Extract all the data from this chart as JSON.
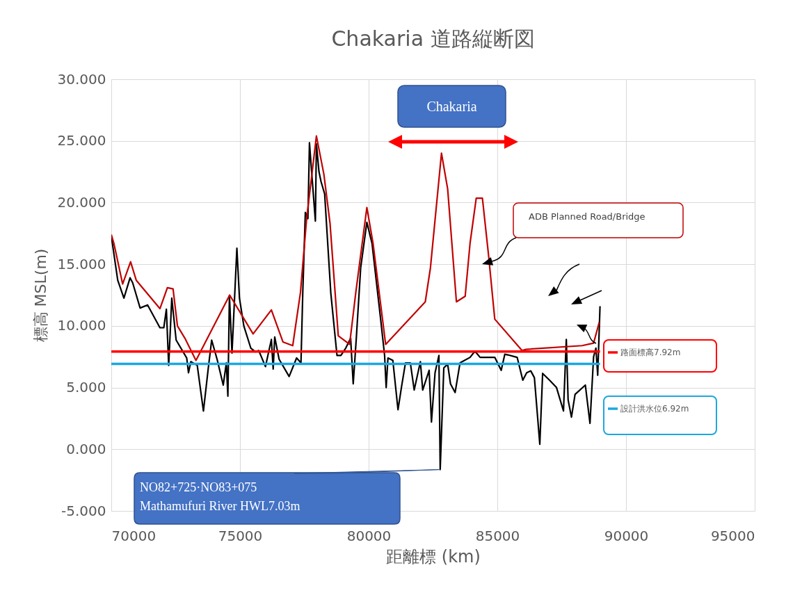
{
  "chart_data": {
    "type": "line",
    "title": "Chakaria 道路縦断図",
    "xlabel": "距離標 (km)",
    "ylabel": "標高 MSL(m)",
    "xlim": [
      70000,
      95000
    ],
    "xticks": [
      70000,
      75000,
      80000,
      85000,
      90000,
      95000
    ],
    "ylim": [
      -5,
      30
    ],
    "yticks": [
      {
        "value": -5,
        "label": "-5.000"
      },
      {
        "value": 0,
        "label": "0.000"
      },
      {
        "value": 5,
        "label": "5.000"
      },
      {
        "value": 10,
        "label": "10.000"
      },
      {
        "value": 15,
        "label": "15.000"
      },
      {
        "value": 20,
        "label": "20.000"
      },
      {
        "value": 25,
        "label": "25.000"
      },
      {
        "value": 30,
        "label": "30.000"
      }
    ],
    "grid": true,
    "series": [
      {
        "color": "#000000",
        "x": [
          70000,
          70250,
          70490,
          70730,
          70830,
          71120,
          71410,
          71890,
          72040,
          72140,
          72230,
          72350,
          72520,
          72930,
          73000,
          73090,
          73340,
          73580,
          73770,
          73900,
          74110,
          74350,
          74470,
          74530,
          74590,
          74690,
          74880,
          74980,
          75150,
          75420,
          75600,
          75730,
          75990,
          76220,
          76290,
          76350,
          76520,
          76910,
          77200,
          77370,
          77440,
          77540,
          77640,
          77700,
          77780,
          77930,
          77970,
          78070,
          78150,
          78290,
          78530,
          78770,
          78920,
          79110,
          79300,
          79400,
          79520,
          79690,
          79930,
          80130,
          80460,
          80620,
          80680,
          80750,
          80940,
          81140,
          81280,
          81430,
          81620,
          81770,
          82010,
          82100,
          82350,
          82440,
          82580,
          82730,
          82780,
          82920,
          83070,
          83180,
          83360,
          83550,
          83940,
          84130,
          84330,
          84900,
          85150,
          85290,
          85410,
          85770,
          85860,
          85990,
          86140,
          86300,
          86440,
          86650,
          86760,
          87030,
          87300,
          87570,
          87680,
          87750,
          87880,
          88020,
          88420,
          88600,
          88740,
          88830,
          88900,
          88990
        ],
        "values": [
          17.3,
          13.7,
          12.25,
          13.9,
          13.5,
          11.45,
          11.7,
          9.85,
          9.85,
          11.35,
          6.8,
          12.25,
          8.85,
          7.4,
          6.2,
          7.1,
          6.8,
          3.1,
          6.6,
          8.85,
          7.3,
          5.2,
          7.0,
          4.3,
          12.45,
          7.8,
          16.3,
          12.25,
          10.0,
          8.2,
          7.9,
          8.0,
          6.7,
          8.9,
          6.5,
          9.1,
          7.3,
          5.9,
          7.4,
          7.0,
          12.7,
          19.2,
          18.7,
          24.85,
          22.6,
          18.5,
          24.75,
          22.5,
          21.7,
          20.7,
          12.65,
          7.6,
          7.6,
          8.2,
          9.0,
          5.3,
          9.0,
          14.7,
          18.4,
          16.7,
          10.65,
          7.6,
          5.0,
          7.4,
          7.2,
          3.2,
          5.1,
          7.0,
          7.0,
          4.8,
          7.1,
          4.8,
          6.4,
          2.2,
          6.2,
          7.6,
          -1.65,
          6.6,
          6.9,
          5.3,
          4.6,
          7.0,
          7.45,
          7.95,
          7.45,
          7.45,
          6.4,
          7.7,
          7.65,
          7.45,
          6.7,
          5.6,
          6.2,
          6.35,
          5.8,
          0.4,
          6.15,
          5.6,
          5.0,
          3.1,
          8.9,
          4.0,
          2.6,
          4.45,
          5.2,
          2.1,
          7.5,
          8.2,
          6.0,
          11.6
        ]
      },
      {
        "color": "#c00000",
        "x": [
          70000,
          70100,
          70440,
          70750,
          70970,
          71890,
          72180,
          72400,
          72570,
          72860,
          73290,
          74600,
          75510,
          76220,
          76670,
          77050,
          77350,
          77590,
          77970,
          78260,
          78500,
          78820,
          79260,
          79500,
          79930,
          80170,
          80660,
          82200,
          82400,
          82830,
          83070,
          83410,
          83750,
          83940,
          84180,
          84420,
          84660,
          84900,
          85960,
          86120,
          88290,
          88740,
          88960
        ],
        "values": [
          17.4,
          16.7,
          13.4,
          15.2,
          13.7,
          11.4,
          13.1,
          13.0,
          10.0,
          9.0,
          7.2,
          12.5,
          9.35,
          11.3,
          8.7,
          8.4,
          12.7,
          18.7,
          25.4,
          22.3,
          18.3,
          9.2,
          8.5,
          12.7,
          19.6,
          16.7,
          8.5,
          11.95,
          14.7,
          24.0,
          21.1,
          11.95,
          12.4,
          16.7,
          20.35,
          20.35,
          15.7,
          10.55,
          8.0,
          8.1,
          8.4,
          8.6,
          10.3
        ]
      }
    ],
    "ref_lines": [
      {
        "axis": "y",
        "value": 7.92,
        "label": "路面標高7.92m",
        "color": "#ff0000"
      },
      {
        "axis": "y",
        "value": 6.92,
        "label": "設計洪水位6.92m",
        "color": "#1aa8e0"
      }
    ],
    "annotations": [
      "Chakaria",
      "ADB Planned Road/Bridge",
      {
        "text": "NO82+725·NO83+075\nMathamufuri River  HWL7.03m",
        "x": 82780,
        "y": -1.65
      }
    ]
  }
}
